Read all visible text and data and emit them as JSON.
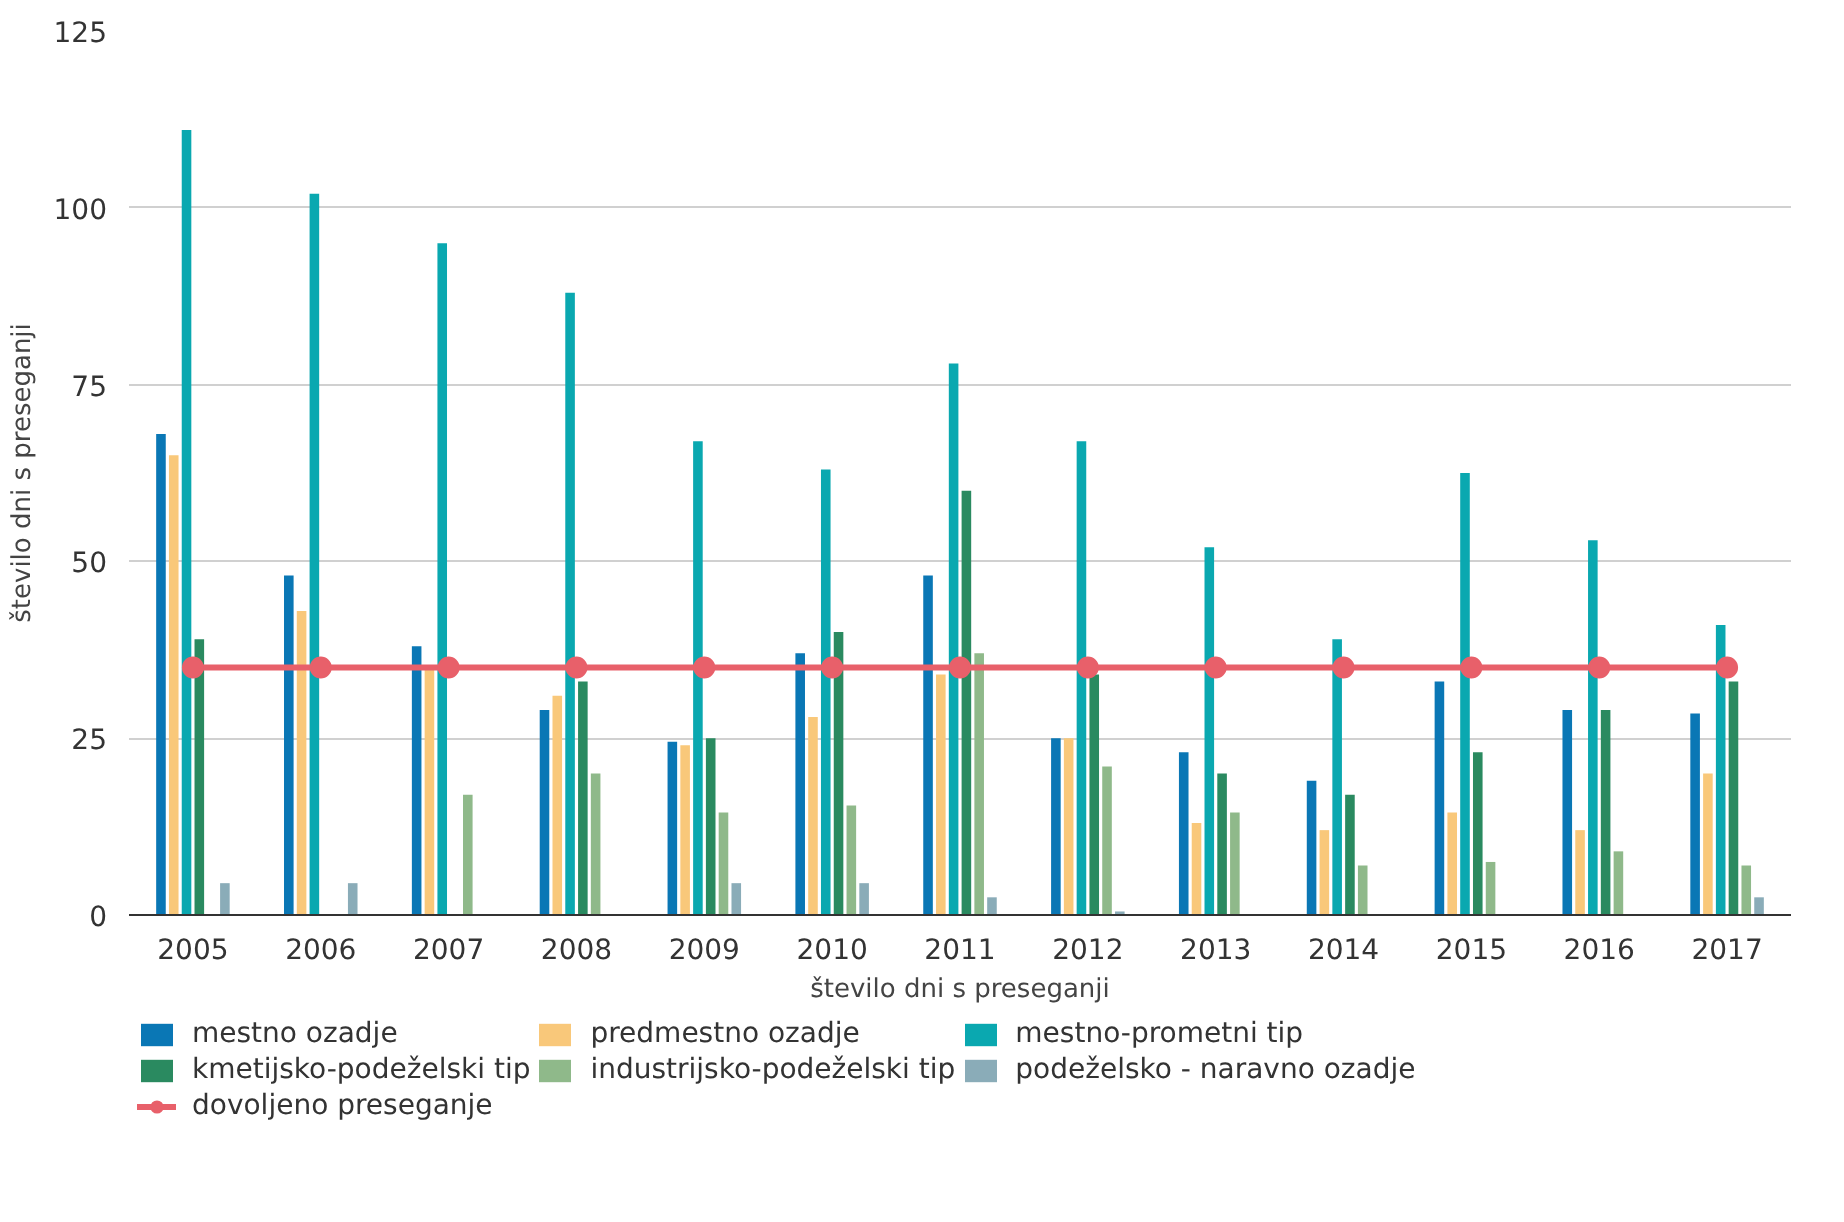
{
  "chart_data": {
    "type": "bar",
    "categories": [
      "2005",
      "2006",
      "2007",
      "2008",
      "2009",
      "2010",
      "2011",
      "2012",
      "2013",
      "2014",
      "2015",
      "2016",
      "2017"
    ],
    "xlabel": "število dni s preseganji",
    "ylabel": "število dni s preseganji",
    "ylim": [
      0,
      125
    ],
    "yticks": [
      0,
      25,
      50,
      75,
      100,
      125
    ],
    "grid": "y",
    "legend": "bottom",
    "series": [
      {
        "name": "mestno ozadje",
        "color": "#0a77b5",
        "values": [
          68,
          48,
          38,
          29,
          24.5,
          37,
          48,
          25,
          23,
          19,
          33,
          29,
          28.5
        ]
      },
      {
        "name": "predmestno ozadje",
        "color": "#f9c87a",
        "values": [
          65,
          43,
          35,
          31,
          24,
          28,
          34,
          25,
          13,
          12,
          14.5,
          12,
          20
        ]
      },
      {
        "name": "mestno-prometni tip",
        "color": "#0aa8b0",
        "values": [
          111,
          102,
          95,
          88,
          67,
          63,
          78,
          67,
          52,
          39,
          62.5,
          53,
          41
        ]
      },
      {
        "name": "kmetijsko-podeželski tip",
        "color": "#2a8a60",
        "values": [
          39,
          null,
          null,
          33,
          25,
          40,
          60,
          34,
          20,
          17,
          23,
          29,
          33
        ]
      },
      {
        "name": "industrijsko-podeželski tip",
        "color": "#8fb98a",
        "values": [
          null,
          null,
          17,
          20,
          14.5,
          15.5,
          37,
          21,
          14.5,
          7,
          7.5,
          9,
          7
        ]
      },
      {
        "name": "podeželsko - naravno ozadje",
        "color": "#8aacb8",
        "values": [
          4.5,
          4.5,
          null,
          null,
          4.5,
          4.5,
          2.5,
          0.5,
          null,
          null,
          null,
          null,
          2.5
        ]
      },
      {
        "name": "dovoljeno preseganje",
        "color": "#e8606a",
        "type": "line",
        "marker": "circle",
        "values": [
          35,
          35,
          35,
          35,
          35,
          35,
          35,
          35,
          35,
          35,
          35,
          35,
          35
        ]
      }
    ]
  }
}
